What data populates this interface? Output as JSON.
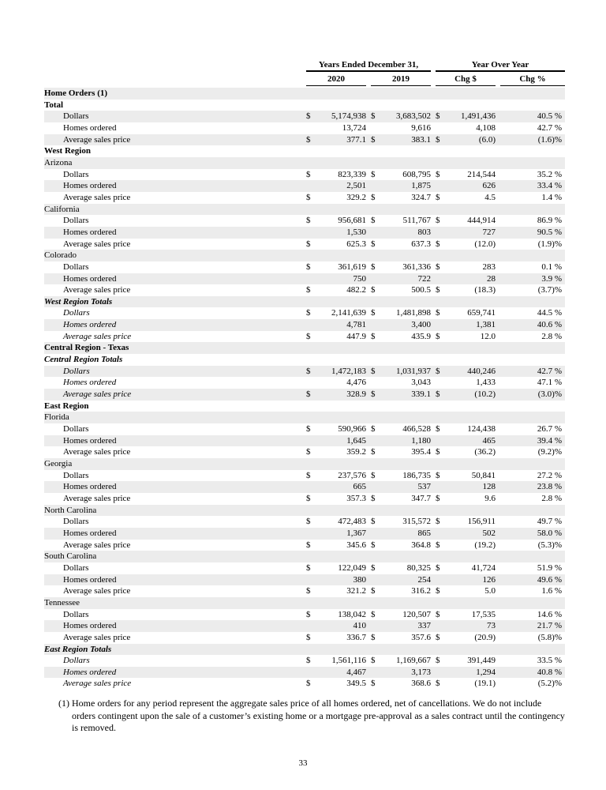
{
  "colors": {
    "stripe": "#ececec"
  },
  "page": {
    "page_number": "33",
    "footnote_marker": "(1)",
    "footnote_text": "Home orders for any period represent the aggregate sales price of all homes ordered, net of cancellations. We do not include orders contingent upon the sale of a customer’s existing home or a mortgage pre-approval as a sales contract until the contingency is removed."
  },
  "table": {
    "col_groups": [
      {
        "label": "Years Ended December 31,"
      },
      {
        "label": "Year Over Year"
      }
    ],
    "columns": [
      "2020",
      "2019",
      "Chg $",
      "Chg %"
    ],
    "rows": [
      {
        "type": "section",
        "label": "Home Orders (1)"
      },
      {
        "type": "section",
        "label": "Total"
      },
      {
        "type": "data",
        "label": "Dollars",
        "cells": [
          "$",
          "5,174,938",
          "$",
          "3,683,502",
          "$",
          "1,491,436",
          "40.5 %"
        ]
      },
      {
        "type": "data",
        "label": "Homes ordered",
        "cells": [
          "",
          "13,724",
          "",
          "9,616",
          "",
          "4,108",
          "42.7 %"
        ]
      },
      {
        "type": "data",
        "label": "Average sales price",
        "cells": [
          "$",
          "377.1",
          "$",
          "383.1",
          "$",
          "(6.0)",
          "(1.6)%"
        ]
      },
      {
        "type": "section",
        "label": "West Region"
      },
      {
        "type": "state",
        "label": "Arizona"
      },
      {
        "type": "data",
        "label": "Dollars",
        "cells": [
          "$",
          "823,339",
          "$",
          "608,795",
          "$",
          "214,544",
          "35.2 %"
        ]
      },
      {
        "type": "data",
        "label": "Homes ordered",
        "cells": [
          "",
          "2,501",
          "",
          "1,875",
          "",
          "626",
          "33.4 %"
        ]
      },
      {
        "type": "data",
        "label": "Average sales price",
        "cells": [
          "$",
          "329.2",
          "$",
          "324.7",
          "$",
          "4.5",
          "1.4 %"
        ]
      },
      {
        "type": "state",
        "label": "California"
      },
      {
        "type": "data",
        "label": "Dollars",
        "cells": [
          "$",
          "956,681",
          "$",
          "511,767",
          "$",
          "444,914",
          "86.9 %"
        ]
      },
      {
        "type": "data",
        "label": "Homes ordered",
        "cells": [
          "",
          "1,530",
          "",
          "803",
          "",
          "727",
          "90.5 %"
        ]
      },
      {
        "type": "data",
        "label": "Average sales price",
        "cells": [
          "$",
          "625.3",
          "$",
          "637.3",
          "$",
          "(12.0)",
          "(1.9)%"
        ]
      },
      {
        "type": "state",
        "label": "Colorado"
      },
      {
        "type": "data",
        "label": "Dollars",
        "cells": [
          "$",
          "361,619",
          "$",
          "361,336",
          "$",
          "283",
          "0.1 %"
        ]
      },
      {
        "type": "data",
        "label": "Homes ordered",
        "cells": [
          "",
          "750",
          "",
          "722",
          "",
          "28",
          "3.9 %"
        ]
      },
      {
        "type": "data",
        "label": "Average sales price",
        "cells": [
          "$",
          "482.2",
          "$",
          "500.5",
          "$",
          "(18.3)",
          "(3.7)%"
        ]
      },
      {
        "type": "totals",
        "label": "West Region Totals"
      },
      {
        "type": "data",
        "italic": true,
        "label": "Dollars",
        "cells": [
          "$",
          "2,141,639",
          "$",
          "1,481,898",
          "$",
          "659,741",
          "44.5 %"
        ]
      },
      {
        "type": "data",
        "italic": true,
        "label": "Homes ordered",
        "cells": [
          "",
          "4,781",
          "",
          "3,400",
          "",
          "1,381",
          "40.6 %"
        ]
      },
      {
        "type": "data",
        "italic": true,
        "label": "Average sales price",
        "cells": [
          "$",
          "447.9",
          "$",
          "435.9",
          "$",
          "12.0",
          "2.8 %"
        ]
      },
      {
        "type": "section",
        "label": "Central Region - Texas"
      },
      {
        "type": "totals",
        "label": "Central Region Totals"
      },
      {
        "type": "data",
        "italic": true,
        "label": "Dollars",
        "cells": [
          "$",
          "1,472,183",
          "$",
          "1,031,937",
          "$",
          "440,246",
          "42.7 %"
        ]
      },
      {
        "type": "data",
        "italic": true,
        "label": "Homes ordered",
        "cells": [
          "",
          "4,476",
          "",
          "3,043",
          "",
          "1,433",
          "47.1 %"
        ]
      },
      {
        "type": "data",
        "italic": true,
        "label": "Average sales price",
        "cells": [
          "$",
          "328.9",
          "$",
          "339.1",
          "$",
          "(10.2)",
          "(3.0)%"
        ]
      },
      {
        "type": "section",
        "label": "East Region"
      },
      {
        "type": "state",
        "label": "Florida"
      },
      {
        "type": "data",
        "label": "Dollars",
        "cells": [
          "$",
          "590,966",
          "$",
          "466,528",
          "$",
          "124,438",
          "26.7 %"
        ]
      },
      {
        "type": "data",
        "label": "Homes ordered",
        "cells": [
          "",
          "1,645",
          "",
          "1,180",
          "",
          "465",
          "39.4 %"
        ]
      },
      {
        "type": "data",
        "label": "Average sales price",
        "cells": [
          "$",
          "359.2",
          "$",
          "395.4",
          "$",
          "(36.2)",
          "(9.2)%"
        ]
      },
      {
        "type": "state",
        "label": "Georgia"
      },
      {
        "type": "data",
        "label": "Dollars",
        "cells": [
          "$",
          "237,576",
          "$",
          "186,735",
          "$",
          "50,841",
          "27.2 %"
        ]
      },
      {
        "type": "data",
        "label": "Homes ordered",
        "cells": [
          "",
          "665",
          "",
          "537",
          "",
          "128",
          "23.8 %"
        ]
      },
      {
        "type": "data",
        "label": "Average sales price",
        "cells": [
          "$",
          "357.3",
          "$",
          "347.7",
          "$",
          "9.6",
          "2.8 %"
        ]
      },
      {
        "type": "state",
        "label": "North Carolina"
      },
      {
        "type": "data",
        "label": "Dollars",
        "cells": [
          "$",
          "472,483",
          "$",
          "315,572",
          "$",
          "156,911",
          "49.7 %"
        ]
      },
      {
        "type": "data",
        "label": "Homes ordered",
        "cells": [
          "",
          "1,367",
          "",
          "865",
          "",
          "502",
          "58.0 %"
        ]
      },
      {
        "type": "data",
        "label": "Average sales price",
        "cells": [
          "$",
          "345.6",
          "$",
          "364.8",
          "$",
          "(19.2)",
          "(5.3)%"
        ]
      },
      {
        "type": "state",
        "label": "South Carolina"
      },
      {
        "type": "data",
        "label": "Dollars",
        "cells": [
          "$",
          "122,049",
          "$",
          "80,325",
          "$",
          "41,724",
          "51.9 %"
        ]
      },
      {
        "type": "data",
        "label": "Homes ordered",
        "cells": [
          "",
          "380",
          "",
          "254",
          "",
          "126",
          "49.6 %"
        ]
      },
      {
        "type": "data",
        "label": "Average sales price",
        "cells": [
          "$",
          "321.2",
          "$",
          "316.2",
          "$",
          "5.0",
          "1.6 %"
        ]
      },
      {
        "type": "state",
        "label": "Tennessee"
      },
      {
        "type": "data",
        "label": "Dollars",
        "cells": [
          "$",
          "138,042",
          "$",
          "120,507",
          "$",
          "17,535",
          "14.6 %"
        ]
      },
      {
        "type": "data",
        "label": "Homes ordered",
        "cells": [
          "",
          "410",
          "",
          "337",
          "",
          "73",
          "21.7 %"
        ]
      },
      {
        "type": "data",
        "label": "Average sales price",
        "cells": [
          "$",
          "336.7",
          "$",
          "357.6",
          "$",
          "(20.9)",
          "(5.8)%"
        ]
      },
      {
        "type": "totals",
        "label": "East Region Totals"
      },
      {
        "type": "data",
        "italic": true,
        "label": "Dollars",
        "cells": [
          "$",
          "1,561,116",
          "$",
          "1,169,667",
          "$",
          "391,449",
          "33.5 %"
        ]
      },
      {
        "type": "data",
        "italic": true,
        "label": "Homes ordered",
        "cells": [
          "",
          "4,467",
          "",
          "3,173",
          "",
          "1,294",
          "40.8 %"
        ]
      },
      {
        "type": "data",
        "italic": true,
        "label": "Average sales price",
        "cells": [
          "$",
          "349.5",
          "$",
          "368.6",
          "$",
          "(19.1)",
          "(5.2)%"
        ]
      }
    ]
  }
}
